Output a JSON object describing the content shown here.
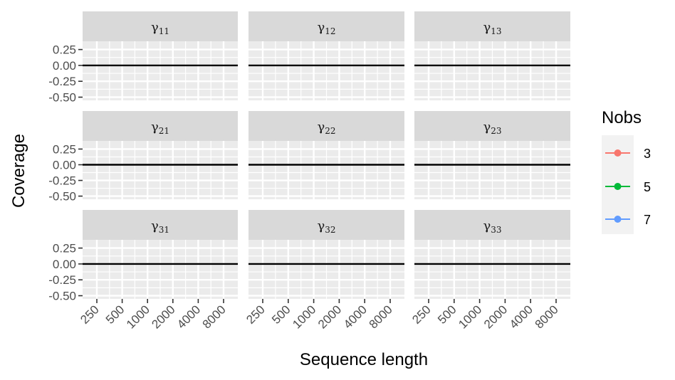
{
  "chart_data": {
    "type": "line",
    "layout": "facet-grid-3x3",
    "xlabel": "Sequence length",
    "ylabel": "Coverage",
    "x_tick_labels": [
      "250",
      "500",
      "1000",
      "2000",
      "4000",
      "8000"
    ],
    "x_scale": "log2",
    "y_ticks": [
      0.25,
      0.0,
      -0.25,
      -0.5
    ],
    "y_tick_labels": [
      "0.25",
      "0.00",
      "-0.25",
      "-0.50"
    ],
    "ylim": [
      -0.55,
      0.38
    ],
    "reference_line_y": 0,
    "grid": true,
    "facets": [
      {
        "symbol": "γ",
        "sub": "11"
      },
      {
        "symbol": "γ",
        "sub": "12"
      },
      {
        "symbol": "γ",
        "sub": "13"
      },
      {
        "symbol": "γ",
        "sub": "21"
      },
      {
        "symbol": "γ",
        "sub": "22"
      },
      {
        "symbol": "γ",
        "sub": "23"
      },
      {
        "symbol": "γ",
        "sub": "31"
      },
      {
        "symbol": "γ",
        "sub": "32"
      },
      {
        "symbol": "γ",
        "sub": "33"
      }
    ],
    "legend": {
      "title": "Nobs",
      "placement": "right",
      "entries": [
        {
          "label": "3",
          "color": "#F8766D"
        },
        {
          "label": "5",
          "color": "#00BA38"
        },
        {
          "label": "7",
          "color": "#619CFF"
        }
      ]
    },
    "series": []
  }
}
